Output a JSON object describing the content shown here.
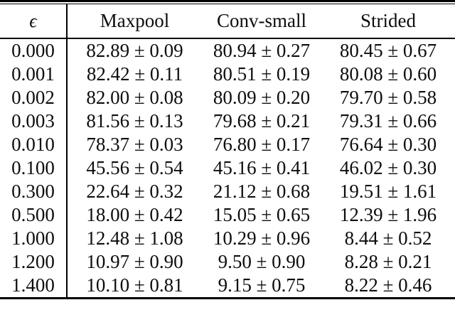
{
  "table": {
    "epsilon_header": "ϵ",
    "columns": [
      "Maxpool",
      "Conv-small",
      "Strided"
    ],
    "rows": [
      {
        "epsilon": "0.000",
        "values": [
          "82.89 ± 0.09",
          "80.94 ± 0.27",
          "80.45 ± 0.67"
        ]
      },
      {
        "epsilon": "0.001",
        "values": [
          "82.42 ± 0.11",
          "80.51 ± 0.19",
          "80.08 ± 0.60"
        ]
      },
      {
        "epsilon": "0.002",
        "values": [
          "82.00 ± 0.08",
          "80.09 ± 0.20",
          "79.70 ± 0.58"
        ]
      },
      {
        "epsilon": "0.003",
        "values": [
          "81.56 ± 0.13",
          "79.68 ± 0.21",
          "79.31 ± 0.66"
        ]
      },
      {
        "epsilon": "0.010",
        "values": [
          "78.37 ± 0.03",
          "76.80 ± 0.17",
          "76.64 ± 0.30"
        ]
      },
      {
        "epsilon": "0.100",
        "values": [
          "45.56 ± 0.54",
          "45.16 ± 0.41",
          "46.02 ± 0.30"
        ]
      },
      {
        "epsilon": "0.300",
        "values": [
          "22.64 ± 0.32",
          "21.12 ± 0.68",
          "19.51 ± 1.61"
        ]
      },
      {
        "epsilon": "0.500",
        "values": [
          "18.00 ± 0.42",
          "15.05 ± 0.65",
          "12.39 ± 1.96"
        ]
      },
      {
        "epsilon": "1.000",
        "values": [
          "12.48 ± 1.08",
          "10.29 ± 0.96",
          "8.44 ± 0.52"
        ]
      },
      {
        "epsilon": "1.200",
        "values": [
          "10.97 ± 0.90",
          "9.50 ± 0.90",
          "8.28 ± 0.21"
        ]
      },
      {
        "epsilon": "1.400",
        "values": [
          "10.10 ± 0.81",
          "9.15 ± 0.75",
          "8.22 ± 0.46"
        ]
      }
    ]
  },
  "colors": {
    "text": "#0d0d0d",
    "rule": "#000000",
    "background": "#ffffff"
  }
}
